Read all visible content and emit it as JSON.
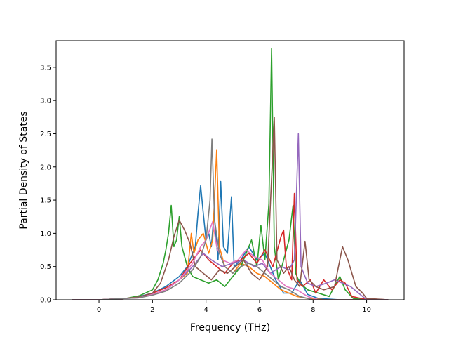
{
  "chart_data": {
    "type": "line",
    "title": "",
    "xlabel": "Frequency (THz)",
    "ylabel": "Partial Density of States",
    "xlim": [
      -1.6,
      11.4
    ],
    "ylim": [
      0,
      3.9
    ],
    "xticks": [
      0,
      2,
      4,
      6,
      8,
      10
    ],
    "yticks": [
      0.0,
      0.5,
      1.0,
      1.5,
      2.0,
      2.5,
      3.0,
      3.5
    ],
    "grid": false,
    "legend": "none",
    "series": [
      {
        "color": "#1f77b4",
        "points": [
          [
            -1,
            0
          ],
          [
            0,
            0
          ],
          [
            1,
            0.02
          ],
          [
            1.5,
            0.05
          ],
          [
            2,
            0.1
          ],
          [
            2.5,
            0.2
          ],
          [
            3,
            0.35
          ],
          [
            3.3,
            0.5
          ],
          [
            3.6,
            0.8
          ],
          [
            3.7,
            1.3
          ],
          [
            3.8,
            1.72
          ],
          [
            3.9,
            1.3
          ],
          [
            4.0,
            0.9
          ],
          [
            4.1,
            1.0
          ],
          [
            4.2,
            0.8
          ],
          [
            4.3,
            1.3
          ],
          [
            4.45,
            0.6
          ],
          [
            4.55,
            1.78
          ],
          [
            4.65,
            0.8
          ],
          [
            4.8,
            0.7
          ],
          [
            4.95,
            1.55
          ],
          [
            5.05,
            0.5
          ],
          [
            5.3,
            0.6
          ],
          [
            5.6,
            0.8
          ],
          [
            5.9,
            0.6
          ],
          [
            6.2,
            0.7
          ],
          [
            6.4,
            0.5
          ],
          [
            6.6,
            0.3
          ],
          [
            6.9,
            0.1
          ],
          [
            7.2,
            0.1
          ],
          [
            7.5,
            0.3
          ],
          [
            7.8,
            0.08
          ],
          [
            8.2,
            0.02
          ],
          [
            9,
            0
          ],
          [
            10,
            0
          ],
          [
            10.8,
            0
          ]
        ]
      },
      {
        "color": "#ff7f0e",
        "points": [
          [
            -1,
            0
          ],
          [
            0,
            0
          ],
          [
            1,
            0.02
          ],
          [
            1.5,
            0.04
          ],
          [
            2,
            0.08
          ],
          [
            2.5,
            0.15
          ],
          [
            3,
            0.3
          ],
          [
            3.3,
            0.4
          ],
          [
            3.45,
            1.0
          ],
          [
            3.55,
            0.7
          ],
          [
            3.7,
            0.9
          ],
          [
            3.9,
            1.0
          ],
          [
            4.1,
            0.7
          ],
          [
            4.25,
            0.9
          ],
          [
            4.4,
            2.26
          ],
          [
            4.5,
            0.8
          ],
          [
            4.7,
            0.5
          ],
          [
            5.0,
            0.4
          ],
          [
            5.3,
            0.55
          ],
          [
            5.6,
            0.5
          ],
          [
            5.9,
            0.4
          ],
          [
            6.2,
            0.35
          ],
          [
            6.5,
            0.25
          ],
          [
            6.8,
            0.15
          ],
          [
            7.1,
            0.1
          ],
          [
            7.4,
            0.05
          ],
          [
            7.8,
            0.02
          ],
          [
            8.5,
            0
          ],
          [
            10,
            0
          ],
          [
            10.8,
            0
          ]
        ]
      },
      {
        "color": "#2ca02c",
        "points": [
          [
            -1,
            0
          ],
          [
            0,
            0
          ],
          [
            1,
            0.02
          ],
          [
            1.5,
            0.06
          ],
          [
            2,
            0.15
          ],
          [
            2.2,
            0.3
          ],
          [
            2.4,
            0.55
          ],
          [
            2.5,
            0.75
          ],
          [
            2.6,
            1.0
          ],
          [
            2.7,
            1.42
          ],
          [
            2.8,
            0.8
          ],
          [
            2.9,
            0.9
          ],
          [
            3.0,
            1.25
          ],
          [
            3.1,
            0.8
          ],
          [
            3.3,
            0.5
          ],
          [
            3.5,
            0.35
          ],
          [
            3.8,
            0.3
          ],
          [
            4.1,
            0.25
          ],
          [
            4.4,
            0.3
          ],
          [
            4.7,
            0.2
          ],
          [
            5.0,
            0.35
          ],
          [
            5.3,
            0.5
          ],
          [
            5.5,
            0.7
          ],
          [
            5.7,
            0.9
          ],
          [
            5.9,
            0.5
          ],
          [
            6.05,
            1.12
          ],
          [
            6.2,
            0.6
          ],
          [
            6.35,
            1.45
          ],
          [
            6.45,
            3.78
          ],
          [
            6.55,
            0.8
          ],
          [
            6.7,
            0.3
          ],
          [
            6.9,
            0.6
          ],
          [
            7.1,
            0.9
          ],
          [
            7.25,
            1.42
          ],
          [
            7.35,
            0.4
          ],
          [
            7.5,
            0.25
          ],
          [
            7.8,
            0.15
          ],
          [
            8.2,
            0.1
          ],
          [
            8.6,
            0.05
          ],
          [
            9.0,
            0.35
          ],
          [
            9.2,
            0.15
          ],
          [
            9.5,
            0.02
          ],
          [
            10,
            0
          ],
          [
            10.8,
            0
          ]
        ]
      },
      {
        "color": "#d62728",
        "points": [
          [
            -1,
            0
          ],
          [
            0,
            0
          ],
          [
            1,
            0.02
          ],
          [
            1.5,
            0.04
          ],
          [
            2,
            0.1
          ],
          [
            2.5,
            0.18
          ],
          [
            3,
            0.3
          ],
          [
            3.4,
            0.55
          ],
          [
            3.8,
            0.75
          ],
          [
            4.1,
            0.6
          ],
          [
            4.4,
            0.5
          ],
          [
            4.7,
            0.4
          ],
          [
            5.0,
            0.55
          ],
          [
            5.3,
            0.6
          ],
          [
            5.6,
            0.7
          ],
          [
            5.9,
            0.55
          ],
          [
            6.2,
            0.75
          ],
          [
            6.5,
            0.5
          ],
          [
            6.8,
            0.95
          ],
          [
            6.9,
            1.05
          ],
          [
            7.0,
            0.5
          ],
          [
            7.2,
            0.3
          ],
          [
            7.3,
            1.6
          ],
          [
            7.4,
            0.3
          ],
          [
            7.6,
            0.2
          ],
          [
            7.9,
            0.3
          ],
          [
            8.1,
            0.1
          ],
          [
            8.4,
            0.3
          ],
          [
            8.7,
            0.15
          ],
          [
            9.0,
            0.3
          ],
          [
            9.2,
            0.25
          ],
          [
            9.45,
            0.05
          ],
          [
            9.8,
            0.02
          ],
          [
            10.8,
            0
          ]
        ]
      },
      {
        "color": "#9467bd",
        "points": [
          [
            -1,
            0
          ],
          [
            0,
            0
          ],
          [
            1,
            0.02
          ],
          [
            1.5,
            0.03
          ],
          [
            2,
            0.08
          ],
          [
            2.5,
            0.15
          ],
          [
            3,
            0.3
          ],
          [
            3.5,
            0.5
          ],
          [
            3.9,
            0.7
          ],
          [
            4.2,
            0.6
          ],
          [
            4.6,
            0.5
          ],
          [
            5.0,
            0.55
          ],
          [
            5.4,
            0.6
          ],
          [
            5.8,
            0.5
          ],
          [
            6.1,
            0.55
          ],
          [
            6.4,
            0.4
          ],
          [
            6.8,
            0.5
          ],
          [
            7.1,
            0.45
          ],
          [
            7.3,
            0.6
          ],
          [
            7.45,
            2.5
          ],
          [
            7.55,
            0.5
          ],
          [
            7.8,
            0.25
          ],
          [
            8.1,
            0.2
          ],
          [
            8.5,
            0.25
          ],
          [
            8.8,
            0.3
          ],
          [
            9.1,
            0.25
          ],
          [
            9.4,
            0.2
          ],
          [
            9.7,
            0.1
          ],
          [
            10,
            0
          ],
          [
            10.8,
            0
          ]
        ]
      },
      {
        "color": "#8c564b",
        "points": [
          [
            -1,
            0
          ],
          [
            0,
            0
          ],
          [
            1,
            0.02
          ],
          [
            1.5,
            0.04
          ],
          [
            2,
            0.1
          ],
          [
            2.3,
            0.25
          ],
          [
            2.6,
            0.6
          ],
          [
            2.8,
            0.95
          ],
          [
            3.0,
            1.2
          ],
          [
            3.2,
            1.05
          ],
          [
            3.4,
            0.85
          ],
          [
            3.6,
            0.5
          ],
          [
            3.9,
            0.4
          ],
          [
            4.2,
            0.3
          ],
          [
            4.5,
            0.45
          ],
          [
            4.8,
            0.4
          ],
          [
            5.1,
            0.5
          ],
          [
            5.4,
            0.6
          ],
          [
            5.7,
            0.4
          ],
          [
            6.0,
            0.3
          ],
          [
            6.3,
            0.5
          ],
          [
            6.55,
            2.75
          ],
          [
            6.65,
            0.6
          ],
          [
            6.9,
            0.4
          ],
          [
            7.1,
            0.5
          ],
          [
            7.3,
            0.3
          ],
          [
            7.5,
            0.2
          ],
          [
            7.7,
            0.88
          ],
          [
            7.85,
            0.3
          ],
          [
            8.1,
            0.2
          ],
          [
            8.4,
            0.15
          ],
          [
            8.8,
            0.2
          ],
          [
            9.1,
            0.8
          ],
          [
            9.3,
            0.6
          ],
          [
            9.6,
            0.2
          ],
          [
            9.85,
            0.1
          ],
          [
            10.0,
            0.02
          ],
          [
            10.8,
            0
          ]
        ]
      },
      {
        "color": "#e377c2",
        "points": [
          [
            -1,
            0
          ],
          [
            0,
            0
          ],
          [
            1,
            0.02
          ],
          [
            1.5,
            0.03
          ],
          [
            2,
            0.08
          ],
          [
            2.5,
            0.15
          ],
          [
            3,
            0.3
          ],
          [
            3.5,
            0.55
          ],
          [
            3.8,
            0.8
          ],
          [
            4.0,
            0.9
          ],
          [
            4.25,
            1.18
          ],
          [
            4.4,
            0.8
          ],
          [
            4.6,
            0.6
          ],
          [
            4.9,
            0.55
          ],
          [
            5.2,
            0.6
          ],
          [
            5.5,
            0.75
          ],
          [
            5.8,
            0.65
          ],
          [
            6.1,
            0.6
          ],
          [
            6.4,
            0.4
          ],
          [
            6.7,
            0.3
          ],
          [
            7.0,
            0.2
          ],
          [
            7.4,
            0.15
          ],
          [
            7.8,
            0.05
          ],
          [
            8.2,
            0
          ],
          [
            10,
            0
          ],
          [
            10.8,
            0
          ]
        ]
      },
      {
        "color": "#7f7f7f",
        "points": [
          [
            -1,
            0
          ],
          [
            0,
            0
          ],
          [
            1,
            0.02
          ],
          [
            1.5,
            0.03
          ],
          [
            2,
            0.07
          ],
          [
            2.5,
            0.13
          ],
          [
            3,
            0.25
          ],
          [
            3.5,
            0.45
          ],
          [
            3.8,
            0.65
          ],
          [
            4.0,
            0.9
          ],
          [
            4.15,
            1.5
          ],
          [
            4.22,
            2.42
          ],
          [
            4.32,
            1.2
          ],
          [
            4.5,
            0.7
          ],
          [
            4.7,
            0.5
          ],
          [
            5.0,
            0.4
          ],
          [
            5.3,
            0.5
          ],
          [
            5.6,
            0.55
          ],
          [
            5.9,
            0.5
          ],
          [
            6.2,
            0.4
          ],
          [
            6.5,
            0.3
          ],
          [
            6.8,
            0.2
          ],
          [
            7.1,
            0.15
          ],
          [
            7.5,
            0.05
          ],
          [
            8.0,
            0
          ],
          [
            10,
            0
          ],
          [
            10.8,
            0
          ]
        ]
      }
    ]
  }
}
